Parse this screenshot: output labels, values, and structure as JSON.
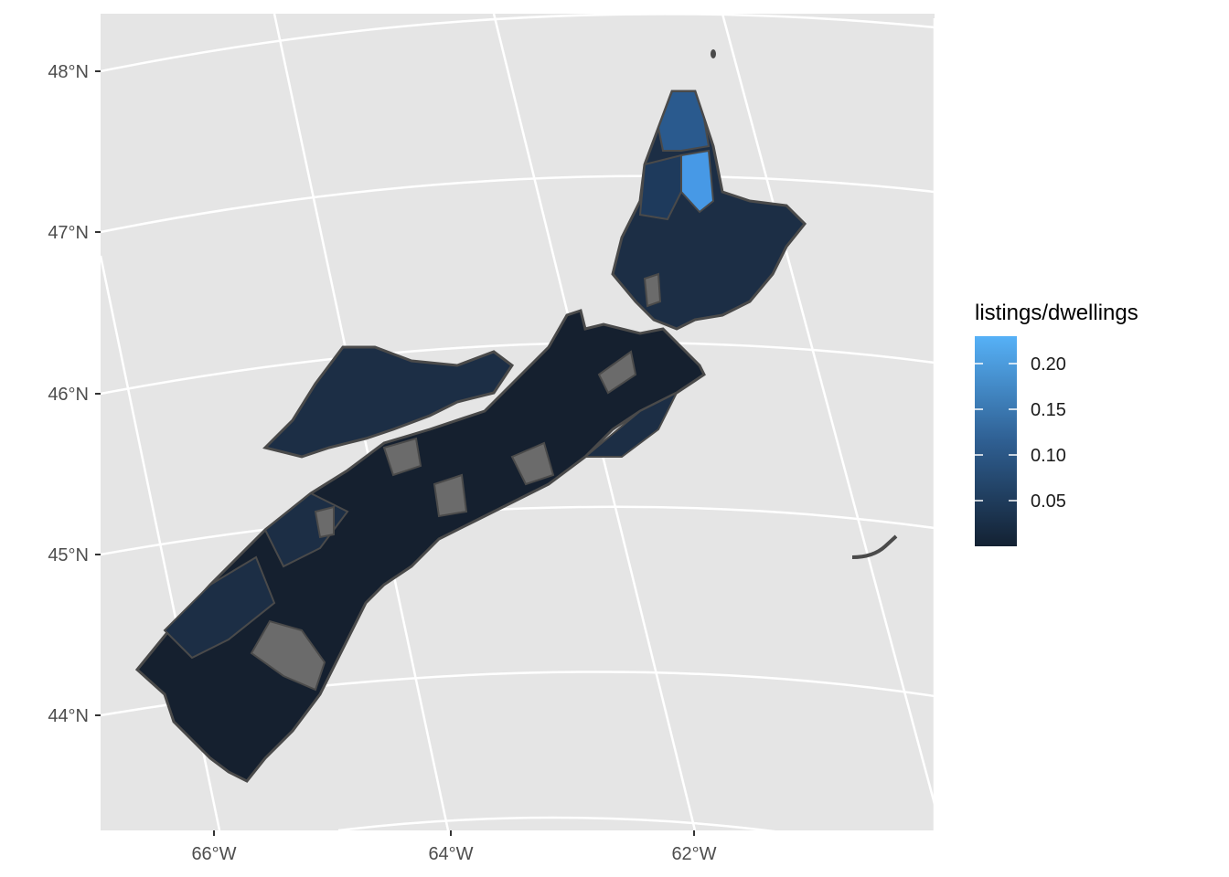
{
  "map": {
    "graticule": {
      "latitudes": [
        "48°N",
        "47°N",
        "46°N",
        "45°N",
        "44°N"
      ],
      "longitudes": [
        "66°W",
        "64°W",
        "62°W"
      ]
    },
    "region_colors": {
      "land_dark": "#15202f",
      "land_mid": "#1c2e45",
      "land_high": "#2a5a8e",
      "land_highest": "#4799e6",
      "no_data": "#6b6b6b",
      "border": "#4a4a4a"
    },
    "panel_background": "#e5e5e5",
    "grid_color": "#ffffff"
  },
  "legend": {
    "title": "listings/dwellings",
    "breaks": [
      "0.20",
      "0.15",
      "0.10",
      "0.05"
    ],
    "break_values": [
      0.2,
      0.15,
      0.1,
      0.05
    ],
    "range": [
      0.0,
      0.23
    ],
    "gradient_low": "#132132",
    "gradient_high": "#56b1f7"
  }
}
